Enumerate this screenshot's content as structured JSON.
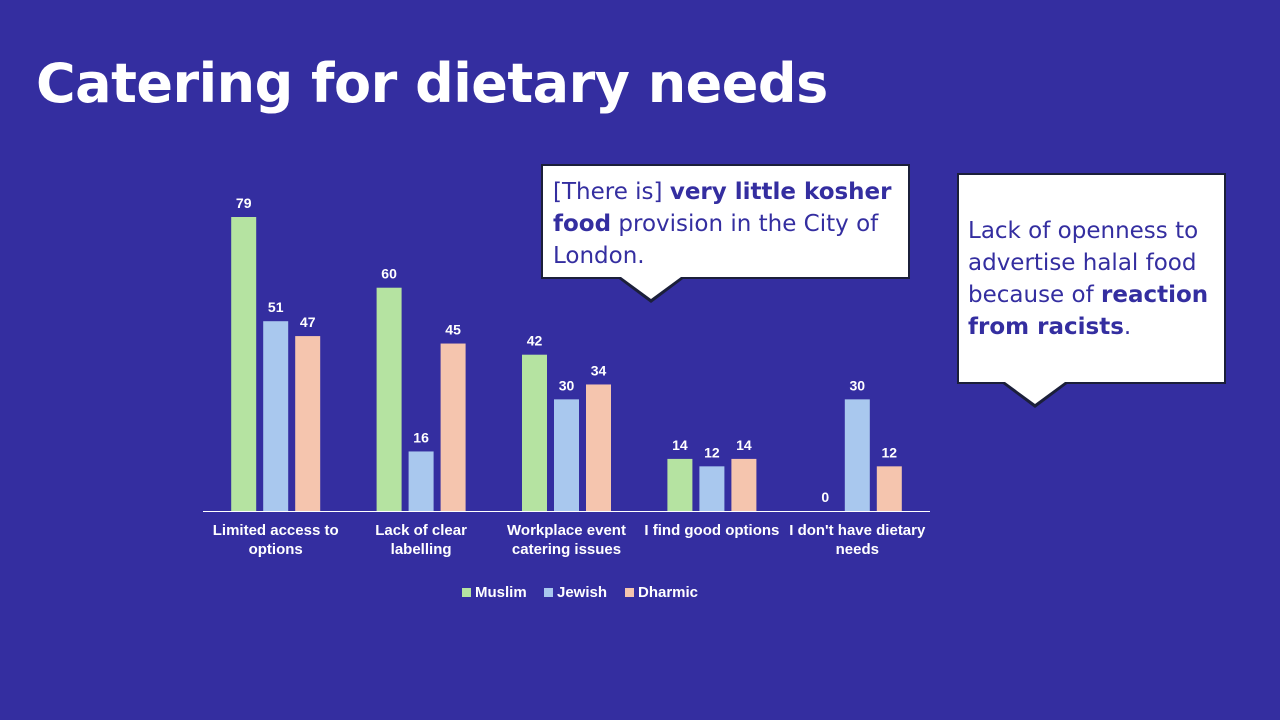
{
  "slide": {
    "title": "Catering for dietary needs",
    "callout_kosher": {
      "segments": [
        {
          "text": "[There is] ",
          "bold": false
        },
        {
          "text": "very little kosher food",
          "bold": true
        },
        {
          "text": " provision in the City of London.",
          "bold": false
        }
      ]
    },
    "callout_halal": {
      "segments": [
        {
          "text": "Lack of openness to advertise halal food because of ",
          "bold": false
        },
        {
          "text": "reaction from racists",
          "bold": true
        },
        {
          "text": ".",
          "bold": false
        }
      ]
    }
  },
  "colors": {
    "background": "#342ea0",
    "muslim": "#b5e3a1",
    "jewish": "#a9c8ee",
    "dharmic": "#f5c5ae",
    "text": "#ffffff",
    "callout_text": "#342ea0"
  },
  "chart_data": {
    "type": "bar",
    "title": "",
    "xlabel": "",
    "ylabel": "",
    "ylim": [
      0,
      80
    ],
    "grid": false,
    "legend": "bottom",
    "categories": [
      [
        "Limited access to",
        "options"
      ],
      [
        "Lack of clear",
        "labelling"
      ],
      [
        "Workplace event",
        "catering issues"
      ],
      [
        "I find good options"
      ],
      [
        "I don't have dietary",
        "needs"
      ]
    ],
    "series": [
      {
        "name": "Muslim",
        "color": "#b5e3a1",
        "values": [
          79,
          60,
          42,
          14,
          0
        ]
      },
      {
        "name": "Jewish",
        "color": "#a9c8ee",
        "values": [
          51,
          16,
          30,
          12,
          30
        ]
      },
      {
        "name": "Dharmic",
        "color": "#f5c5ae",
        "values": [
          47,
          45,
          34,
          14,
          12
        ]
      }
    ]
  }
}
